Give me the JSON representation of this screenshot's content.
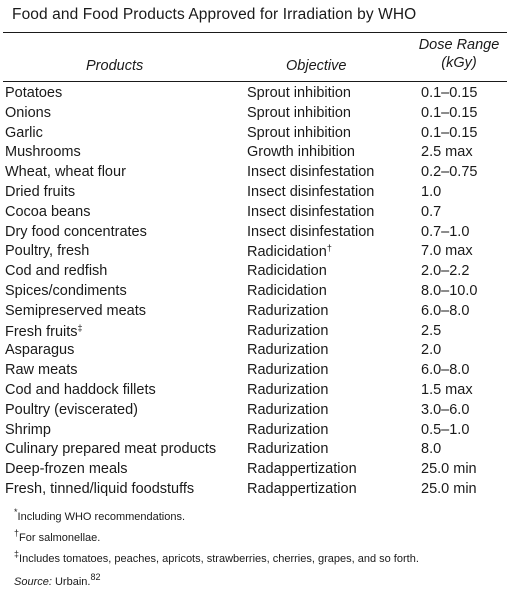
{
  "table": {
    "title": "Food and Food Products Approved for Irradiation by WHO",
    "headers": {
      "products": "Products",
      "objective": "Objective",
      "dose_line1": "Dose Range",
      "dose_line2": "(kGy)"
    },
    "rows": [
      {
        "product": "Potatoes",
        "objective": "Sprout inhibition",
        "dose": "0.1–0.15"
      },
      {
        "product": "Onions",
        "objective": "Sprout inhibition",
        "dose": "0.1–0.15"
      },
      {
        "product": "Garlic",
        "objective": "Sprout inhibition",
        "dose": "0.1–0.15"
      },
      {
        "product": "Mushrooms",
        "objective": "Growth inhibition",
        "dose": "2.5 max"
      },
      {
        "product": "Wheat, wheat flour",
        "objective": "Insect disinfestation",
        "dose": "0.2–0.75"
      },
      {
        "product": "Dried fruits",
        "objective": "Insect disinfestation",
        "dose": "1.0"
      },
      {
        "product": "Cocoa beans",
        "objective": "Insect disinfestation",
        "dose": "0.7"
      },
      {
        "product": "Dry food concentrates",
        "objective": "Insect disinfestation",
        "dose": "0.7–1.0"
      },
      {
        "product": "Poultry, fresh",
        "objective": "Radicidation",
        "objective_mark": "†",
        "dose": "7.0 max"
      },
      {
        "product": "Cod and redfish",
        "objective": "Radicidation",
        "dose": "2.0–2.2"
      },
      {
        "product": "Spices/condiments",
        "objective": "Radicidation",
        "dose": "8.0–10.0"
      },
      {
        "product": "Semipreserved meats",
        "objective": "Radurization",
        "dose": "6.0–8.0"
      },
      {
        "product": "Fresh fruits",
        "product_mark": "‡",
        "objective": "Radurization",
        "dose": "2.5"
      },
      {
        "product": "Asparagus",
        "objective": "Radurization",
        "dose": "2.0"
      },
      {
        "product": "Raw meats",
        "objective": "Radurization",
        "dose": "6.0–8.0"
      },
      {
        "product": "Cod and haddock fillets",
        "objective": "Radurization",
        "dose": "1.5 max"
      },
      {
        "product": "Poultry (eviscerated)",
        "objective": "Radurization",
        "dose": "3.0–6.0"
      },
      {
        "product": "Shrimp",
        "objective": "Radurization",
        "dose": "0.5–1.0"
      },
      {
        "product": "Culinary prepared meat products",
        "objective": "Radurization",
        "dose": "8.0"
      },
      {
        "product": "Deep-frozen meals",
        "objective": "Radappertization",
        "dose": "25.0 min"
      },
      {
        "product": "Fresh, tinned/liquid foodstuffs",
        "objective": "Radappertization",
        "dose": "25.0 min"
      }
    ]
  },
  "footnotes": [
    {
      "mark": "*",
      "text": "Including WHO recommendations."
    },
    {
      "mark": "†",
      "text": "For salmonellae."
    },
    {
      "mark": "‡",
      "text": "Includes tomatoes, peaches, apricots, strawberries, cherries, grapes, and so forth."
    }
  ],
  "source": {
    "label": "Source:",
    "text": " Urbain.",
    "ref": "82"
  }
}
